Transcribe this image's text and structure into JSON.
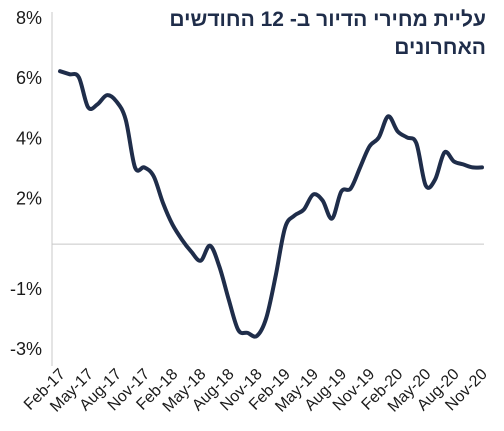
{
  "chart_data": {
    "type": "line",
    "title": "עליית מחירי הדיור ב- 12 החודשים האחרונים",
    "xlabel": "",
    "ylabel": "",
    "grid": false,
    "line_color": "#1f2d4a",
    "ylim": [
      -3.6,
      8.3
    ],
    "y_ticks": [
      {
        "value": 8,
        "label": "8%"
      },
      {
        "value": 6,
        "label": "6%"
      },
      {
        "value": 4,
        "label": "4%"
      },
      {
        "value": 2,
        "label": "2%"
      },
      {
        "value": -1,
        "label": "-1%"
      },
      {
        "value": -3,
        "label": "-3%"
      }
    ],
    "baseline_value": 0.45,
    "x_tick_labels": [
      "Feb-17",
      "May-17",
      "Aug-17",
      "Nov-17",
      "Feb-18",
      "May-18",
      "Aug-18",
      "Nov-18",
      "Feb-19",
      "May-19",
      "Aug-19",
      "Nov-19",
      "Feb-20",
      "May-20",
      "Aug-20",
      "Nov-20"
    ],
    "x_tick_index_start": 0,
    "x_tick_index_step": 3,
    "series": [
      {
        "x": [
          "Feb-17",
          "Mar-17",
          "Apr-17",
          "May-17",
          "Jun-17",
          "Jul-17",
          "Aug-17",
          "Sep-17",
          "Oct-17",
          "Nov-17",
          "Dec-17",
          "Jan-18",
          "Feb-18",
          "Mar-18",
          "Apr-18",
          "May-18",
          "Jun-18",
          "Jul-18",
          "Aug-18",
          "Sep-18",
          "Oct-18",
          "Nov-18",
          "Dec-18",
          "Jan-19",
          "Feb-19",
          "Mar-19",
          "Apr-19",
          "May-19",
          "Jun-19",
          "Jul-19",
          "Aug-19",
          "Sep-19",
          "Oct-19",
          "Nov-19",
          "Dec-19",
          "Jan-20",
          "Feb-20",
          "Mar-20",
          "Apr-20",
          "May-20",
          "Jun-20",
          "Jul-20",
          "Aug-20",
          "Sep-20",
          "Oct-20",
          "Nov-20"
        ],
        "values": [
          6.2,
          6.1,
          6.0,
          5.0,
          5.1,
          5.4,
          5.2,
          4.6,
          3.0,
          3.0,
          2.7,
          1.8,
          1.1,
          0.6,
          0.2,
          -0.1,
          0.4,
          -0.3,
          -1.4,
          -2.4,
          -2.5,
          -2.6,
          -2.0,
          -0.6,
          1.0,
          1.4,
          1.6,
          2.1,
          1.9,
          1.3,
          2.2,
          2.3,
          3.0,
          3.7,
          4.0,
          4.7,
          4.2,
          4.0,
          3.8,
          2.4,
          2.6,
          3.5,
          3.2,
          3.1,
          3.0,
          3.0
        ]
      }
    ]
  }
}
